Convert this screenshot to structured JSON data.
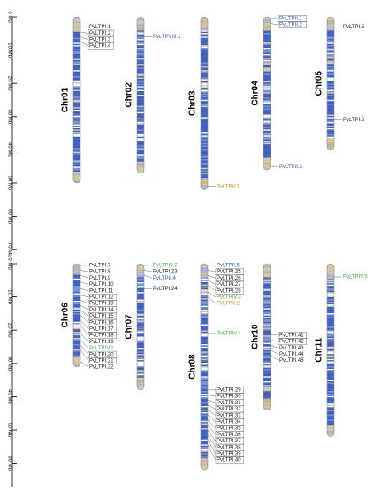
{
  "scale": {
    "ticks": [
      "0 Mb",
      "10 Mb",
      "20 Mb",
      "30 Mb",
      "40 Mb",
      "50 Mb",
      "60 Mb",
      "70 Mb"
    ],
    "max_mb": 70
  },
  "colors": {
    "black": "#222222",
    "blue": "#2f55b7",
    "green": "#3cb043",
    "orange": "#ef7d1a",
    "purple": "#7b3fb0",
    "band_blue": "#3b5fc4",
    "band_light": "#9eb3e6",
    "band_tan": "#d9c7a0"
  },
  "panels": [
    {
      "chromosomes": [
        {
          "name": "Chr01",
          "length_mb": 50,
          "genes": [
            {
              "name": "PvLTPI.1",
              "pos_mb": 3,
              "color": "black",
              "boxed": false
            },
            {
              "name": "PvLTPI.2",
              "pos_mb": 4.5,
              "color": "black",
              "boxed": true
            },
            {
              "name": "PvLTPI.3",
              "pos_mb": 6,
              "color": "black",
              "boxed": true
            },
            {
              "name": "PvLTPI.4",
              "pos_mb": 7.5,
              "color": "black",
              "boxed": true
            }
          ]
        },
        {
          "name": "Chr02",
          "length_mb": 47,
          "genes": [
            {
              "name": "PvLTPVIII.1",
              "pos_mb": 6,
              "color": "purple",
              "boxed": false
            }
          ]
        },
        {
          "name": "Chr03",
          "length_mb": 52,
          "genes": [
            {
              "name": "PvLTPV.1",
              "pos_mb": 51,
              "color": "orange",
              "boxed": false
            }
          ]
        },
        {
          "name": "Chr04",
          "length_mb": 46,
          "genes": [
            {
              "name": "PvLTPII.1",
              "pos_mb": 0.5,
              "color": "blue",
              "boxed": true
            },
            {
              "name": "PvLTPII.2",
              "pos_mb": 2,
              "color": "blue",
              "boxed": true
            },
            {
              "name": "PvLTPII.3",
              "pos_mb": 45,
              "color": "blue",
              "boxed": false
            }
          ]
        },
        {
          "name": "Chr05",
          "length_mb": 40,
          "genes": [
            {
              "name": "PvLTPI.5",
              "pos_mb": 3,
              "color": "black",
              "boxed": false
            },
            {
              "name": "PvLTPI.6",
              "pos_mb": 31,
              "color": "black",
              "boxed": false
            }
          ]
        }
      ]
    },
    {
      "chromosomes": [
        {
          "name": "Chr06",
          "length_mb": 31,
          "genes": [
            {
              "name": "PvLTPI.7",
              "pos_mb": 0.5,
              "color": "black",
              "boxed": false
            },
            {
              "name": "PvLTPI.8",
              "pos_mb": 2,
              "color": "black",
              "boxed": false
            },
            {
              "name": "PvLTPI.9",
              "pos_mb": 3.5,
              "color": "black",
              "boxed": false
            },
            {
              "name": "PvLTPI.10",
              "pos_mb": 5.5,
              "color": "black",
              "boxed": false
            },
            {
              "name": "PvLTPI.11",
              "pos_mb": 7.5,
              "color": "black",
              "boxed": false
            },
            {
              "name": "PvLTPI.12",
              "pos_mb": 9.5,
              "color": "black",
              "boxed": true
            },
            {
              "name": "PvLTPI.13",
              "pos_mb": 11,
              "color": "black",
              "boxed": true
            },
            {
              "name": "PvLTPI.14",
              "pos_mb": 12.5,
              "color": "black",
              "boxed": true
            },
            {
              "name": "PvLTPI.15",
              "pos_mb": 14,
              "color": "black",
              "boxed": true
            },
            {
              "name": "PvLTPI.16",
              "pos_mb": 15.5,
              "color": "black",
              "boxed": true
            },
            {
              "name": "PvLTPI.17",
              "pos_mb": 17,
              "color": "black",
              "boxed": true
            },
            {
              "name": "PvLTPI.18",
              "pos_mb": 18.5,
              "color": "black",
              "boxed": true
            },
            {
              "name": "PvLTPI.19",
              "pos_mb": 21,
              "color": "black",
              "boxed": false
            },
            {
              "name": "PvLTPIV.1",
              "pos_mb": 23,
              "color": "green",
              "boxed": false
            },
            {
              "name": "PvLTPI.20",
              "pos_mb": 24.5,
              "color": "black",
              "boxed": true
            },
            {
              "name": "PvLTPI.21",
              "pos_mb": 26,
              "color": "black",
              "boxed": true
            },
            {
              "name": "PvLTPI.22",
              "pos_mb": 29.5,
              "color": "black",
              "boxed": false
            }
          ]
        },
        {
          "name": "Chr07",
          "length_mb": 38,
          "genes": [
            {
              "name": "PvLTPIV.2",
              "pos_mb": 0.5,
              "color": "green",
              "boxed": false
            },
            {
              "name": "PvLTPI.23",
              "pos_mb": 2,
              "color": "black",
              "boxed": false
            },
            {
              "name": "PvLTPII.4",
              "pos_mb": 3.5,
              "color": "blue",
              "boxed": false
            },
            {
              "name": "PvLTPI.24",
              "pos_mb": 7.5,
              "color": "black",
              "boxed": false
            }
          ]
        },
        {
          "name": "Chr08",
          "length_mb": 62,
          "genes": [
            {
              "name": "PvLTPII.5",
              "pos_mb": 0.5,
              "color": "blue",
              "boxed": false
            },
            {
              "name": "PvLTPI.25",
              "pos_mb": 2,
              "color": "black",
              "boxed": true
            },
            {
              "name": "PvLTPI.26",
              "pos_mb": 3.5,
              "color": "black",
              "boxed": true
            },
            {
              "name": "PvLTPI.27",
              "pos_mb": 5,
              "color": "black",
              "boxed": true
            },
            {
              "name": "PvLTPI.28",
              "pos_mb": 6.5,
              "color": "black",
              "boxed": true
            },
            {
              "name": "PvLTPIV.3",
              "pos_mb": 8.5,
              "color": "green",
              "boxed": false
            },
            {
              "name": "PvLTPV.2",
              "pos_mb": 10,
              "color": "orange",
              "boxed": false
            },
            {
              "name": "PvLTPIV.4",
              "pos_mb": 21,
              "color": "green",
              "boxed": false
            },
            {
              "name": "PvLTPI.29",
              "pos_mb": 38,
              "color": "black",
              "boxed": true
            },
            {
              "name": "PvLTPI.30",
              "pos_mb": 39.5,
              "color": "black",
              "boxed": true
            },
            {
              "name": "PvLTPI.31",
              "pos_mb": 41,
              "color": "black",
              "boxed": true
            },
            {
              "name": "PvLTPI.32",
              "pos_mb": 42.5,
              "color": "black",
              "boxed": true
            },
            {
              "name": "PvLTPI.33",
              "pos_mb": 44,
              "color": "black",
              "boxed": true
            },
            {
              "name": "PvLTPI.34",
              "pos_mb": 45.5,
              "color": "black",
              "boxed": true
            },
            {
              "name": "PvLTPI.35",
              "pos_mb": 47,
              "color": "black",
              "boxed": true
            },
            {
              "name": "PvLTPI.36",
              "pos_mb": 48.5,
              "color": "black",
              "boxed": true
            },
            {
              "name": "PvLTPI.37",
              "pos_mb": 50,
              "color": "black",
              "boxed": true
            },
            {
              "name": "PvLTPI.38",
              "pos_mb": 51.5,
              "color": "black",
              "boxed": true
            },
            {
              "name": "PvLTPI.39",
              "pos_mb": 53,
              "color": "black",
              "boxed": true
            },
            {
              "name": "PvLTPI.40",
              "pos_mb": 54.5,
              "color": "black",
              "boxed": true
            }
          ]
        },
        {
          "name": "Chr10",
          "length_mb": 44,
          "genes": [
            {
              "name": "PvLTPI.41",
              "pos_mb": 21.5,
              "color": "black",
              "boxed": true
            },
            {
              "name": "PvLTPI.42",
              "pos_mb": 23,
              "color": "black",
              "boxed": true
            },
            {
              "name": "PvLTPI.43",
              "pos_mb": 24.5,
              "color": "black",
              "boxed": false
            },
            {
              "name": "PvLTPI.44",
              "pos_mb": 26,
              "color": "black",
              "boxed": false
            },
            {
              "name": "PvLTPI.45",
              "pos_mb": 27.5,
              "color": "black",
              "boxed": false
            }
          ]
        },
        {
          "name": "Chr11",
          "length_mb": 52,
          "genes": [
            {
              "name": "PvLTPIV.5",
              "pos_mb": 4,
              "color": "green",
              "boxed": false
            }
          ]
        }
      ]
    }
  ]
}
